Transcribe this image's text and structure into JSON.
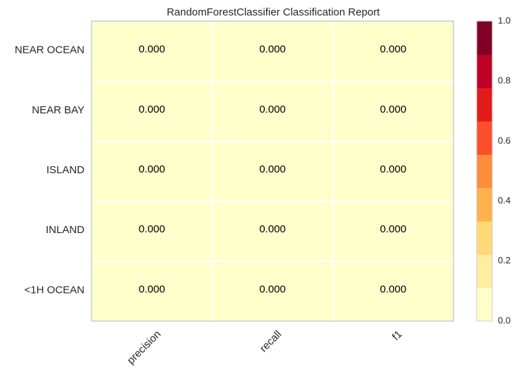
{
  "chart_data": {
    "type": "heatmap",
    "title": "RandomForestClassifier Classification Report",
    "rows": [
      "NEAR OCEAN",
      "NEAR BAY",
      "ISLAND",
      "INLAND",
      "<1H OCEAN"
    ],
    "columns": [
      "precision",
      "recall",
      "f1"
    ],
    "values": [
      [
        0.0,
        0.0,
        0.0
      ],
      [
        0.0,
        0.0,
        0.0
      ],
      [
        0.0,
        0.0,
        0.0
      ],
      [
        0.0,
        0.0,
        0.0
      ],
      [
        0.0,
        0.0,
        0.0
      ]
    ],
    "cell_labels": [
      [
        "0.000",
        "0.000",
        "0.000"
      ],
      [
        "0.000",
        "0.000",
        "0.000"
      ],
      [
        "0.000",
        "0.000",
        "0.000"
      ],
      [
        "0.000",
        "0.000",
        "0.000"
      ],
      [
        "0.000",
        "0.000",
        "0.000"
      ]
    ],
    "colorbar": {
      "range": [
        0.0,
        1.0
      ],
      "ticks": [
        "0.0",
        "0.2",
        "0.4",
        "0.6",
        "0.8",
        "1.0"
      ],
      "tick_values": [
        0.0,
        0.2,
        0.4,
        0.6,
        0.8,
        1.0
      ],
      "colormap": "YlOrRd",
      "colors": [
        "#ffffcc",
        "#ffeda0",
        "#fed976",
        "#feb24c",
        "#fd8d3c",
        "#fc4e2a",
        "#e31a1c",
        "#bd0026",
        "#800026"
      ]
    },
    "grid": true
  }
}
